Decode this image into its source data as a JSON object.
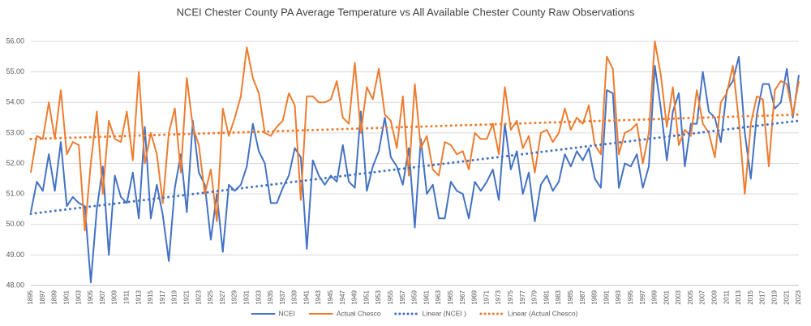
{
  "chart_data": {
    "type": "line",
    "title": "NCEI Chester County PA Average Temperature vs All Available Chester County Raw Observations",
    "categories": [
      "1895",
      null,
      "1897",
      null,
      "1899",
      null,
      "1901",
      null,
      "1903",
      null,
      "1905",
      null,
      "1907",
      null,
      "1909",
      null,
      "1911",
      null,
      "1913",
      null,
      "1915",
      null,
      "1917",
      null,
      "1919",
      null,
      "1921",
      null,
      "1923",
      null,
      "1925",
      null,
      "1927",
      null,
      "1929",
      null,
      "1931",
      null,
      "1933",
      null,
      "1935",
      null,
      "1937",
      null,
      "1939",
      null,
      "1941",
      null,
      "1943",
      null,
      "1945",
      null,
      "1947",
      null,
      "1949",
      null,
      "1951",
      null,
      "1953",
      null,
      "1955",
      null,
      "1957",
      null,
      "1959",
      null,
      "1961",
      null,
      "1963",
      null,
      "1965",
      null,
      "1967",
      null,
      "1969",
      null,
      "1971",
      null,
      "1973",
      null,
      "1975",
      null,
      "1977",
      null,
      "1979",
      null,
      "1981",
      null,
      "1983",
      null,
      "1985",
      null,
      "1987",
      null,
      "1989",
      null,
      "1991",
      null,
      "1993",
      null,
      "1995",
      null,
      "1997",
      null,
      "1999",
      null,
      "2001",
      null,
      "2003",
      null,
      "2005",
      null,
      "2007",
      null,
      "2009",
      null,
      "2011",
      null,
      "2013",
      null,
      "2015",
      null,
      "2017",
      null,
      "2019",
      null,
      "2021",
      null,
      "2023"
    ],
    "series": [
      {
        "name": "NCEI",
        "color": "#4472c4",
        "values": [
          50.4,
          51.4,
          51.1,
          52.3,
          51.1,
          52.7,
          50.6,
          50.9,
          50.7,
          50.6,
          48.1,
          50.5,
          51.9,
          49.0,
          51.6,
          50.9,
          50.7,
          51.7,
          50.2,
          53.2,
          50.2,
          51.3,
          50.3,
          48.8,
          51.2,
          52.3,
          50.4,
          53.4,
          51.7,
          51.3,
          49.5,
          51.0,
          49.1,
          51.3,
          51.1,
          51.3,
          51.9,
          53.3,
          52.4,
          52.0,
          50.7,
          50.7,
          51.2,
          51.6,
          52.5,
          52.2,
          49.2,
          52.1,
          51.6,
          51.3,
          51.6,
          51.4,
          52.6,
          51.4,
          51.2,
          53.7,
          51.1,
          51.9,
          52.4,
          53.5,
          52.2,
          51.9,
          51.3,
          52.5,
          49.9,
          52.8,
          51.0,
          51.3,
          50.2,
          50.2,
          51.4,
          51.1,
          51.0,
          50.2,
          51.4,
          51.1,
          51.4,
          51.8,
          50.8,
          53.3,
          51.8,
          52.4,
          51.0,
          51.7,
          50.1,
          51.3,
          51.6,
          51.1,
          51.4,
          52.3,
          51.9,
          52.4,
          52.1,
          52.5,
          51.5,
          51.2,
          54.4,
          54.3,
          51.2,
          52.0,
          51.9,
          52.3,
          51.2,
          51.9,
          55.2,
          53.8,
          52.1,
          53.7,
          54.3,
          51.9,
          53.3,
          53.3,
          55.0,
          53.7,
          53.5,
          52.7,
          54.4,
          54.7,
          55.5,
          53.0,
          51.5,
          53.6,
          54.6,
          54.6,
          53.8,
          54.0,
          55.1,
          53.5,
          54.9
        ]
      },
      {
        "name": "Actual Chesco",
        "color": "#ed7d31",
        "values": [
          51.7,
          52.9,
          52.8,
          54.0,
          52.8,
          54.4,
          52.3,
          52.7,
          52.6,
          49.8,
          52.0,
          53.7,
          51.0,
          53.4,
          52.8,
          52.7,
          53.7,
          52.1,
          55.0,
          52.0,
          53.0,
          52.3,
          50.7,
          53.0,
          53.8,
          51.7,
          54.8,
          53.2,
          52.6,
          51.0,
          51.8,
          50.1,
          53.8,
          52.9,
          53.5,
          54.2,
          55.8,
          54.8,
          54.3,
          53.0,
          52.9,
          53.2,
          53.4,
          54.3,
          53.9,
          50.8,
          54.2,
          54.2,
          54.0,
          54.0,
          54.1,
          54.7,
          53.5,
          53.3,
          55.3,
          53.0,
          54.5,
          54.1,
          55.1,
          53.6,
          53.4,
          52.5,
          54.2,
          51.6,
          54.6,
          52.5,
          52.9,
          51.8,
          51.6,
          52.7,
          52.6,
          52.3,
          52.4,
          51.8,
          53.0,
          52.8,
          52.8,
          53.3,
          52.3,
          54.5,
          53.1,
          53.4,
          52.5,
          52.9,
          51.7,
          53.0,
          53.1,
          52.7,
          53.0,
          53.8,
          53.1,
          53.5,
          53.3,
          53.9,
          52.6,
          52.3,
          55.5,
          55.1,
          52.3,
          53.0,
          53.1,
          53.3,
          52.0,
          53.0,
          56.0,
          54.9,
          53.2,
          54.5,
          52.6,
          53.1,
          52.9,
          54.4,
          53.3,
          53.0,
          52.2,
          54.0,
          54.3,
          55.2,
          53.4,
          51.0,
          53.3,
          54.2,
          54.1,
          51.9,
          54.4,
          54.7,
          54.6,
          53.6,
          54.7
        ]
      }
    ],
    "trendlines": [
      {
        "name": "Linear (NCEI )",
        "color": "#4472c4",
        "x": [
          1895,
          2023
        ],
        "values": [
          50.35,
          53.4
        ]
      },
      {
        "name": "Linear (Actual Chesco)",
        "color": "#ed7d31",
        "x": [
          1895,
          2023
        ],
        "values": [
          52.8,
          53.6
        ]
      }
    ],
    "ylim": [
      48,
      56
    ],
    "yticks": [
      {
        "value": 48,
        "label": "48.00"
      },
      {
        "value": 49,
        "label": "49.00"
      },
      {
        "value": 50,
        "label": "50.00"
      },
      {
        "value": 51,
        "label": "51.00"
      },
      {
        "value": 52,
        "label": "52.00"
      },
      {
        "value": 53,
        "label": "53.00"
      },
      {
        "value": 54,
        "label": "54.00"
      },
      {
        "value": 55,
        "label": "55.00"
      },
      {
        "value": 56,
        "label": "56.00"
      }
    ],
    "grid": true,
    "legend": "bottom"
  }
}
